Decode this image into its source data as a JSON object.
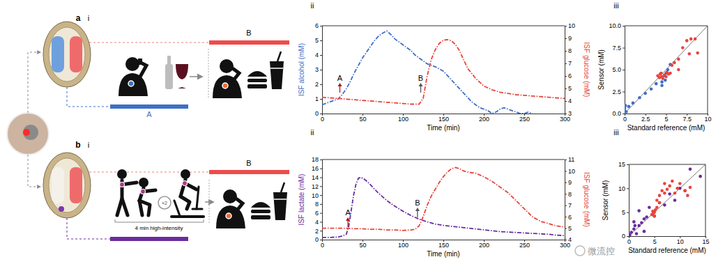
{
  "figure": {
    "rows": [
      {
        "label": "a",
        "parts": [
          "i",
          "ii",
          "iii"
        ],
        "phase_labels": {
          "start": "A",
          "meal": "B"
        }
      },
      {
        "label": "b",
        "parts": [
          "i",
          "ii",
          "iii"
        ],
        "phase_labels": {
          "meal": "B"
        },
        "repeat": "×2",
        "note": "4 min high-intensity"
      }
    ],
    "watermark": "微流控"
  },
  "chart_data": [
    {
      "type": "line",
      "x_label": "Time (min)",
      "xlim": [
        0,
        300
      ],
      "xticks": [
        0,
        50,
        100,
        150,
        200,
        250,
        300
      ],
      "ylim": [
        0,
        6
      ],
      "yticks": [
        0,
        1,
        2,
        3,
        4,
        5,
        6
      ],
      "y2lim": [
        3,
        10
      ],
      "y2ticks": [
        3,
        4,
        5,
        6,
        7,
        8,
        9,
        10
      ],
      "series": [
        {
          "name": "ISF alcohol (mM)",
          "color": "#3f6fc4",
          "line_style": "dash-dot",
          "x": [
            0,
            5,
            10,
            15,
            20,
            25,
            30,
            35,
            40,
            45,
            50,
            55,
            60,
            65,
            70,
            75,
            80,
            85,
            90,
            95,
            100,
            105,
            110,
            115,
            120,
            125,
            130,
            135,
            140,
            145,
            150,
            155,
            160,
            165,
            170,
            175,
            180,
            185,
            190,
            195,
            200,
            205,
            210,
            215,
            220,
            225,
            230,
            235,
            240,
            245,
            250,
            255,
            260
          ],
          "values": [
            0.6,
            0.7,
            0.8,
            0.9,
            1.0,
            1.3,
            1.7,
            2.2,
            2.8,
            3.3,
            3.8,
            4.2,
            4.6,
            5.0,
            5.3,
            5.5,
            5.65,
            5.4,
            5.1,
            4.9,
            4.7,
            4.5,
            4.3,
            4.0,
            3.8,
            3.6,
            3.4,
            3.3,
            3.2,
            3.05,
            2.9,
            2.6,
            2.3,
            2.0,
            1.7,
            1.4,
            1.1,
            0.8,
            0.6,
            0.4,
            0.3,
            0.2,
            0.0,
            0.1,
            0.3,
            0.4,
            0.3,
            0.2,
            0.1,
            0.0,
            0.0,
            0.1,
            0.0
          ]
        },
        {
          "name": "ISF glucose (mM)",
          "color": "#e8453c",
          "line_style": "dash-dot",
          "axis": "y2",
          "x": [
            0,
            10,
            20,
            30,
            40,
            50,
            60,
            70,
            80,
            90,
            100,
            110,
            120,
            125,
            130,
            135,
            140,
            145,
            150,
            155,
            160,
            165,
            170,
            175,
            180,
            190,
            200,
            210,
            220,
            230,
            240,
            250,
            260,
            270,
            280,
            290,
            300
          ],
          "values": [
            4.3,
            4.25,
            4.2,
            4.15,
            4.1,
            4.05,
            4.0,
            3.95,
            3.9,
            3.85,
            3.8,
            3.75,
            3.75,
            4.2,
            6.0,
            7.3,
            8.1,
            8.6,
            8.85,
            8.9,
            8.8,
            8.5,
            8.0,
            7.3,
            6.6,
            5.8,
            5.2,
            4.9,
            4.7,
            4.6,
            4.5,
            4.45,
            4.4,
            4.35,
            4.3,
            4.25,
            4.2
          ]
        }
      ],
      "annotations": [
        {
          "text": "A",
          "x": 22,
          "y": 2.1,
          "color": "#a3191b"
        },
        {
          "text": "B",
          "x": 122,
          "y": 2.1,
          "color": "#555555"
        }
      ]
    },
    {
      "type": "scatter",
      "x_label": "Standard reference (mM)",
      "y_label": "Sensor (mM)",
      "xlim": [
        0,
        10
      ],
      "xticks": [
        0,
        2.5,
        5,
        7.5,
        10
      ],
      "ylim": [
        0,
        10
      ],
      "yticks": [
        {
          "value": 0,
          "label": "0.0"
        },
        2.5,
        {
          "value": 5,
          "label": "5.0"
        },
        7.5,
        {
          "value": 10,
          "label": "10.0"
        }
      ],
      "series": [
        {
          "color": "#3f6fc4",
          "marker": "circle",
          "x": [
            0,
            0,
            0.1,
            0.2,
            0.5,
            1.0,
            1.8,
            2.5,
            3.2,
            3.8,
            4.5,
            4.5,
            4.8,
            4.9,
            5.0,
            5.2,
            5.5
          ],
          "values": [
            0.3,
            0.6,
            0.9,
            0.2,
            0.8,
            1.2,
            1.8,
            2.3,
            2.8,
            3.4,
            3.2,
            3.6,
            4.3,
            3.8,
            4.6,
            5.0,
            5.6
          ]
        },
        {
          "color": "#e8453c",
          "marker": "circle",
          "x": [
            4.0,
            4.2,
            4.3,
            4.4,
            4.5,
            4.6,
            4.8,
            5.0,
            5.1,
            5.3,
            5.5,
            5.7,
            6.0,
            6.5,
            6.5,
            7.0,
            7.5,
            7.8,
            8.0,
            8.5,
            8.8
          ],
          "values": [
            4.3,
            4.1,
            4.5,
            4.6,
            4.2,
            4.0,
            4.4,
            4.2,
            4.7,
            4.5,
            4.6,
            5.5,
            5.8,
            6.2,
            5.0,
            7.5,
            8.3,
            6.8,
            8.5,
            8.5,
            6.9
          ]
        }
      ]
    },
    {
      "type": "line",
      "x_label": "Time (min)",
      "xlim": [
        0,
        300
      ],
      "xticks": [
        0,
        50,
        100,
        150,
        200,
        250,
        300
      ],
      "ylim": [
        0,
        18
      ],
      "yticks": [
        0,
        2,
        4,
        6,
        8,
        10,
        12,
        14,
        16,
        18
      ],
      "y2lim": [
        4,
        11
      ],
      "y2ticks": [
        4,
        5,
        6,
        7,
        8,
        9,
        10,
        11
      ],
      "series": [
        {
          "name": "ISF lactate (mM)",
          "color": "#6a2c9e",
          "line_style": "dash-dot",
          "x": [
            0,
            10,
            20,
            25,
            30,
            33,
            36,
            39,
            42,
            45,
            48,
            52,
            56,
            60,
            65,
            70,
            75,
            80,
            90,
            100,
            110,
            120,
            130,
            140,
            150,
            160,
            170,
            180,
            190,
            200,
            210,
            220,
            230,
            240,
            250,
            260,
            270,
            280,
            290,
            300
          ],
          "values": [
            0.5,
            0.5,
            0.6,
            0.8,
            1.2,
            3.0,
            6.5,
            10.0,
            12.5,
            13.8,
            14.0,
            13.6,
            13.0,
            12.3,
            11.3,
            10.4,
            9.6,
            8.8,
            7.5,
            6.4,
            5.4,
            4.6,
            4.0,
            3.5,
            3.2,
            3.0,
            2.8,
            2.6,
            2.4,
            2.2,
            2.0,
            1.8,
            1.7,
            1.6,
            1.5,
            1.4,
            1.3,
            1.2,
            1.0,
            0.9
          ]
        },
        {
          "name": "ISF glucose (mM)",
          "color": "#e8453c",
          "line_style": "dash-dot",
          "axis": "y2",
          "x": [
            0,
            10,
            20,
            30,
            40,
            50,
            60,
            70,
            80,
            90,
            100,
            110,
            115,
            120,
            125,
            130,
            135,
            140,
            145,
            150,
            155,
            160,
            165,
            170,
            175,
            180,
            190,
            200,
            210,
            220,
            230,
            240,
            250,
            260,
            270,
            280,
            290,
            300
          ],
          "values": [
            5.0,
            5.0,
            5.0,
            5.0,
            4.95,
            4.95,
            4.9,
            4.9,
            4.85,
            4.85,
            4.8,
            4.85,
            4.9,
            5.2,
            6.0,
            7.0,
            7.8,
            8.4,
            9.0,
            9.5,
            9.9,
            10.2,
            10.3,
            10.2,
            10.0,
            9.9,
            9.8,
            9.5,
            9.1,
            8.6,
            8.1,
            7.4,
            6.7,
            6.0,
            5.6,
            5.4,
            5.2,
            5.1
          ]
        }
      ],
      "annotations": [
        {
          "text": "A",
          "x": 32,
          "y": 5.0,
          "color": "#a3191b"
        },
        {
          "text": "B",
          "x": 118,
          "y": 7.2,
          "color": "#555555"
        }
      ]
    },
    {
      "type": "scatter",
      "x_label": "Standard reference (mM)",
      "y_label": "Sensor (mM)",
      "xlim": [
        0,
        15
      ],
      "xticks": [
        0,
        5,
        10,
        15
      ],
      "ylim": [
        0,
        15
      ],
      "yticks": [
        0,
        5,
        10,
        15
      ],
      "series": [
        {
          "color": "#6a2c9e",
          "marker": "circle",
          "x": [
            0.2,
            0.5,
            1.0,
            1.0,
            1.2,
            1.5,
            2.0,
            2.0,
            2.5,
            3.0,
            3.0,
            3.5,
            4.0,
            5.0,
            6.0,
            7.0,
            8.0,
            9.0,
            10.0,
            11.0,
            12.0,
            14.0
          ],
          "values": [
            0.3,
            0.8,
            1.5,
            3.0,
            2.2,
            0.5,
            2.2,
            5.3,
            2.8,
            1.0,
            3.6,
            4.0,
            6.0,
            4.2,
            7.0,
            6.5,
            8.8,
            7.5,
            10.0,
            9.5,
            14.0,
            12.5
          ]
        },
        {
          "color": "#e8453c",
          "marker": "circle",
          "x": [
            4.5,
            4.7,
            4.8,
            5.0,
            5.0,
            5.2,
            5.5,
            5.5,
            6.0,
            6.0,
            6.5,
            7.0,
            7.0,
            7.5,
            8.0,
            8.5,
            9.0,
            9.5,
            10.0,
            11.0,
            11.5,
            12.0
          ],
          "values": [
            4.5,
            5.2,
            4.8,
            5.0,
            4.2,
            5.5,
            6.0,
            7.5,
            8.5,
            7.0,
            9.5,
            9.0,
            11.0,
            9.8,
            10.5,
            11.5,
            9.0,
            10.0,
            11.0,
            9.5,
            8.5,
            10.2
          ]
        }
      ]
    }
  ]
}
